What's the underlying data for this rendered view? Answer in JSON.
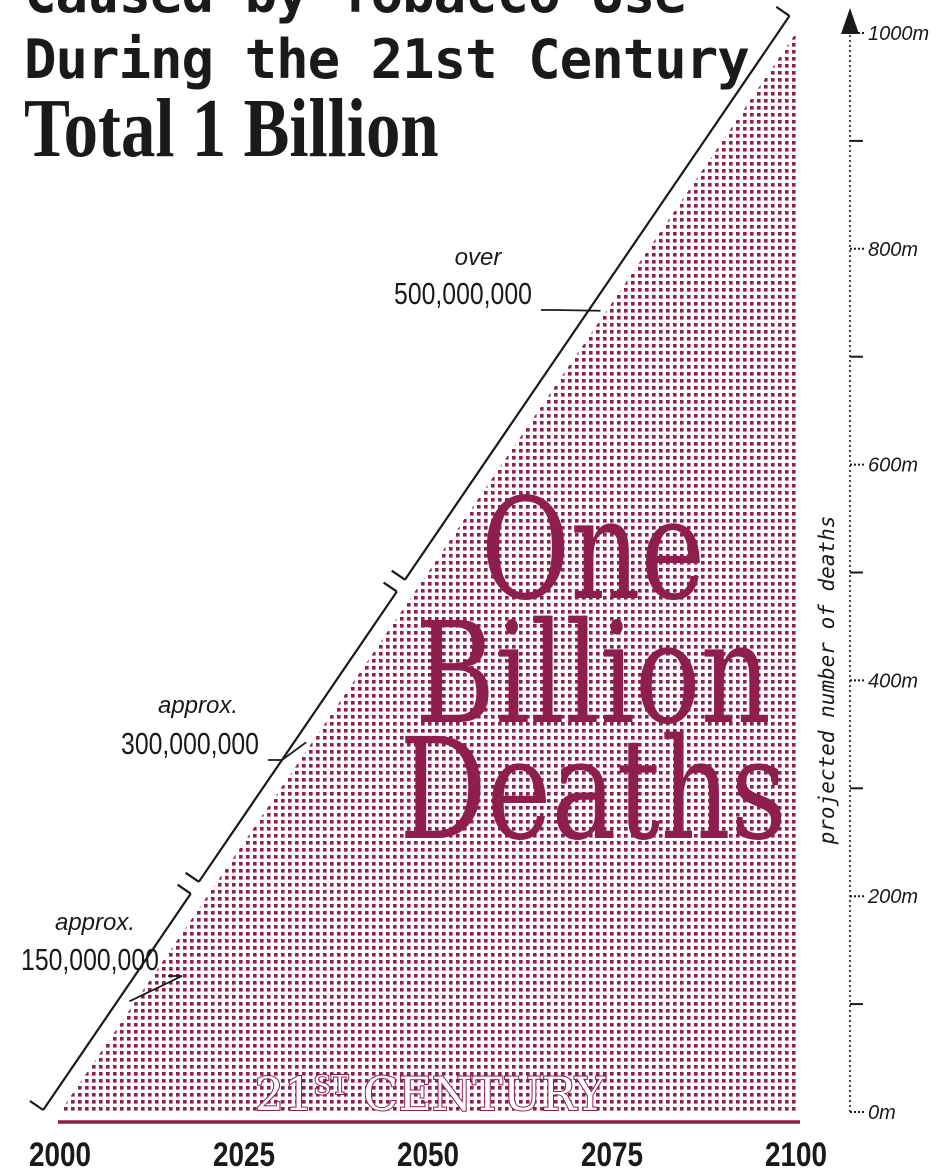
{
  "title_lines": [
    "Caused by Tobacco Use",
    "During the 21st Century",
    "Total 1 Billion"
  ],
  "colors": {
    "fill": "#8e1e4e",
    "ink": "#1a1a1a",
    "axis_rule": "#8e1e4e"
  },
  "chart_data": {
    "type": "area",
    "x": [
      2000,
      2100
    ],
    "y": [
      0,
      1000
    ],
    "xlim": [
      2000,
      2100
    ],
    "ylim": [
      0,
      1000
    ],
    "x_ticks": [
      2000,
      2025,
      2050,
      2075,
      2100
    ],
    "x_tick_labels": [
      "2000",
      "2025",
      "2050",
      "2075",
      "2100"
    ],
    "y_ticks": [
      0,
      200,
      400,
      600,
      800,
      1000
    ],
    "y_tick_labels": [
      "0m",
      "200m",
      "400m",
      "600m",
      "800m",
      "1000m"
    ],
    "y_minor_step": 100,
    "ylabel": "projected number of deaths",
    "area_label_lines": [
      "One",
      "Billion",
      "Deaths"
    ],
    "baseline_label_main": "21",
    "baseline_label_sup": "ST",
    "baseline_label_rest": " CENTURY",
    "grid": false,
    "brackets": [
      {
        "from": 2000,
        "to": 2020,
        "top_label": "approx.",
        "label": "150,000,000"
      },
      {
        "from": 2020,
        "to": 2048,
        "top_label": "approx.",
        "label": "300,000,000"
      },
      {
        "from": 2048,
        "to": 2100,
        "top_label": "over",
        "label": "500,000,000"
      }
    ]
  }
}
